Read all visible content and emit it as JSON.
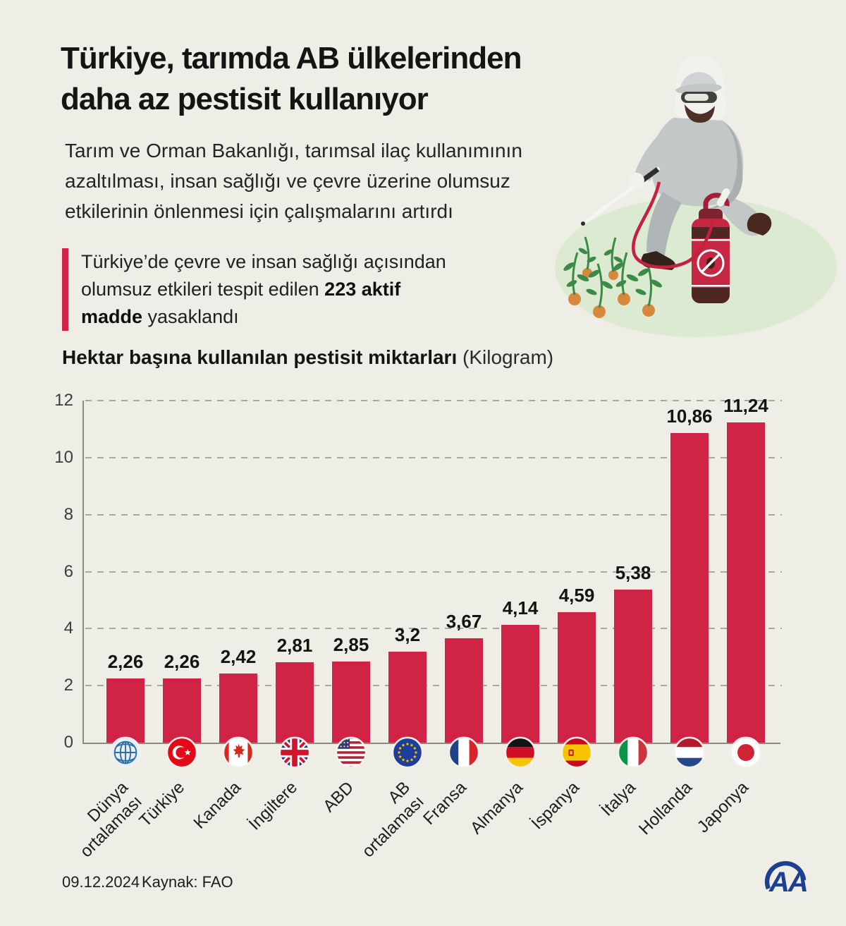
{
  "colors": {
    "background": "#efeee6",
    "accent_red": "#d02346",
    "bar_red": "#d02346",
    "logo_blue": "#1d3e92"
  },
  "header": {
    "title_line1": "Türkiye, tarımda AB ülkelerinden",
    "title_line2": "daha az pestisit kullanıyor",
    "subtitle": "Tarım ve Orman Bakanlığı, tarımsal ilaç kullanımının azaltılması, insan sağlığı ve çevre üzerine olumsuz etkilerinin önlenmesi için çalışmalarını artırdı"
  },
  "callout": {
    "pre": "Türkiye’de çevre ve insan sağlığı açısından olumsuz etkileri tespit edilen ",
    "bold": "223 aktif madde",
    "post": " yasaklandı"
  },
  "illustration": {
    "description": "worker in protective suit spraying pesticide on plants"
  },
  "chart_data": {
    "type": "bar",
    "title": "Hektar başına kullanılan pestisit miktarları",
    "title_unit": "(Kilogram)",
    "categories": [
      "Dünya\nortalaması",
      "Türkiye",
      "Kanada",
      "İngiltere",
      "ABD",
      "AB\nortalaması",
      "Fransa",
      "Almanya",
      "İspanya",
      "İtalya",
      "Hollanda",
      "Japonya"
    ],
    "values": [
      2.26,
      2.26,
      2.42,
      2.81,
      2.85,
      3.2,
      3.67,
      4.14,
      4.59,
      5.38,
      10.86,
      11.24
    ],
    "value_labels": [
      "2,26",
      "2,26",
      "2,42",
      "2,81",
      "2,85",
      "3,2",
      "3,67",
      "4,14",
      "4,59",
      "5,38",
      "10,86",
      "11,24"
    ],
    "flags": [
      "globe",
      "turkey",
      "canada",
      "uk",
      "usa",
      "eu",
      "france",
      "germany",
      "spain",
      "italy",
      "netherlands",
      "japan"
    ],
    "ylim": [
      0,
      12
    ],
    "yticks": [
      0,
      2,
      4,
      6,
      8,
      10,
      12
    ],
    "grid": "dashed-horizontal",
    "bar_color": "#d02346",
    "legend": "none"
  },
  "footer": {
    "date": "09.12.2024",
    "source": "Kaynak: FAO",
    "logo": "AA"
  }
}
